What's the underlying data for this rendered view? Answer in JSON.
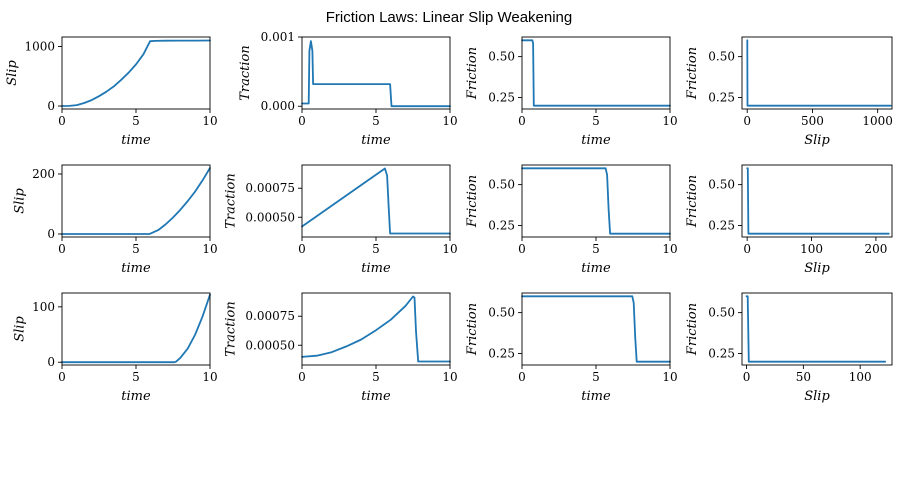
{
  "figure": {
    "title": "Friction Laws: Linear Slip Weakening",
    "line_color": "#1f77b4"
  },
  "chart_data": [
    {
      "type": "line",
      "xlabel": "time",
      "ylabel": "Slip",
      "xlim": [
        0,
        10
      ],
      "ylim": [
        -50,
        1160
      ],
      "xticks": [
        {
          "v": 0,
          "t": "0"
        },
        {
          "v": 5,
          "t": "5"
        },
        {
          "v": 10,
          "t": "10"
        }
      ],
      "yticks": [
        {
          "v": 0,
          "t": "0"
        },
        {
          "v": 1000,
          "t": "1000"
        }
      ],
      "x": [
        0,
        0.5,
        1,
        1.5,
        2,
        2.5,
        3,
        3.5,
        4,
        4.5,
        5,
        5.5,
        5.95,
        6.3,
        7,
        8,
        9,
        10
      ],
      "y": [
        0,
        2,
        15,
        50,
        100,
        165,
        240,
        330,
        440,
        560,
        700,
        870,
        1090,
        1095,
        1097,
        1099,
        1100,
        1102
      ]
    },
    {
      "type": "line",
      "xlabel": "time",
      "ylabel": "Traction",
      "xlim": [
        0,
        10
      ],
      "ylim": [
        -4e-05,
        0.001
      ],
      "xticks": [
        {
          "v": 0,
          "t": "0"
        },
        {
          "v": 5,
          "t": "5"
        },
        {
          "v": 10,
          "t": "10"
        }
      ],
      "yticks": [
        {
          "v": 0,
          "t": "0.000"
        },
        {
          "v": 0.001,
          "t": "0.001"
        }
      ],
      "x": [
        0,
        0.45,
        0.5,
        0.6,
        0.7,
        0.75,
        0.8,
        5.95,
        6.05,
        10
      ],
      "y": [
        4e-05,
        4e-05,
        0.0008,
        0.00094,
        0.0008,
        0.00032,
        0.00032,
        0.00032,
        0,
        0
      ]
    },
    {
      "type": "line",
      "xlabel": "time",
      "ylabel": "Friction",
      "xlim": [
        0,
        10
      ],
      "ylim": [
        0.18,
        0.62
      ],
      "xticks": [
        {
          "v": 0,
          "t": "0"
        },
        {
          "v": 5,
          "t": "5"
        },
        {
          "v": 10,
          "t": "10"
        }
      ],
      "yticks": [
        {
          "v": 0.25,
          "t": "0.25"
        },
        {
          "v": 0.5,
          "t": "0.50"
        }
      ],
      "x": [
        0,
        0.7,
        0.75,
        0.8,
        10
      ],
      "y": [
        0.6,
        0.6,
        0.58,
        0.2,
        0.2
      ]
    },
    {
      "type": "line",
      "xlabel": "Slip",
      "ylabel": "Friction",
      "xlim": [
        -40,
        1110
      ],
      "ylim": [
        0.18,
        0.62
      ],
      "xticks": [
        {
          "v": 0,
          "t": "0"
        },
        {
          "v": 500,
          "t": "500"
        },
        {
          "v": 1000,
          "t": "1000"
        }
      ],
      "yticks": [
        {
          "v": 0.25,
          "t": "0.25"
        },
        {
          "v": 0.5,
          "t": "0.50"
        }
      ],
      "x": [
        0,
        1,
        2,
        1100
      ],
      "y": [
        0.6,
        0.6,
        0.2,
        0.2
      ]
    },
    {
      "type": "line",
      "xlabel": "time",
      "ylabel": "Slip",
      "xlim": [
        0,
        10
      ],
      "ylim": [
        -10,
        230
      ],
      "xticks": [
        {
          "v": 0,
          "t": "0"
        },
        {
          "v": 5,
          "t": "5"
        },
        {
          "v": 10,
          "t": "10"
        }
      ],
      "yticks": [
        {
          "v": 0,
          "t": "0"
        },
        {
          "v": 200,
          "t": "200"
        }
      ],
      "x": [
        0,
        5.9,
        6,
        6.5,
        7,
        7.5,
        8,
        8.5,
        9,
        9.5,
        10
      ],
      "y": [
        0,
        0,
        2,
        13,
        32,
        55,
        81,
        110,
        142,
        179,
        220
      ]
    },
    {
      "type": "line",
      "xlabel": "time",
      "ylabel": "Traction",
      "xlim": [
        0,
        10
      ],
      "ylim": [
        0.00033,
        0.00095
      ],
      "xticks": [
        {
          "v": 0,
          "t": "0"
        },
        {
          "v": 5,
          "t": "5"
        },
        {
          "v": 10,
          "t": "10"
        }
      ],
      "yticks": [
        {
          "v": 0.0005,
          "t": "0.00050"
        },
        {
          "v": 0.00075,
          "t": "0.00075"
        }
      ],
      "x": [
        0,
        5.6,
        5.75,
        5.85,
        5.95,
        10
      ],
      "y": [
        0.00042,
        0.00092,
        0.00086,
        0.0006,
        0.00036,
        0.00036
      ]
    },
    {
      "type": "line",
      "xlabel": "time",
      "ylabel": "Friction",
      "xlim": [
        0,
        10
      ],
      "ylim": [
        0.18,
        0.62
      ],
      "xticks": [
        {
          "v": 0,
          "t": "0"
        },
        {
          "v": 5,
          "t": "5"
        },
        {
          "v": 10,
          "t": "10"
        }
      ],
      "yticks": [
        {
          "v": 0.25,
          "t": "0.25"
        },
        {
          "v": 0.5,
          "t": "0.50"
        }
      ],
      "x": [
        0,
        5.65,
        5.75,
        5.85,
        5.95,
        10
      ],
      "y": [
        0.6,
        0.6,
        0.56,
        0.35,
        0.2,
        0.2
      ]
    },
    {
      "type": "line",
      "xlabel": "Slip",
      "ylabel": "Friction",
      "xlim": [
        -8,
        225
      ],
      "ylim": [
        0.18,
        0.62
      ],
      "xticks": [
        {
          "v": 0,
          "t": "0"
        },
        {
          "v": 100,
          "t": "100"
        },
        {
          "v": 200,
          "t": "200"
        }
      ],
      "yticks": [
        {
          "v": 0.25,
          "t": "0.25"
        },
        {
          "v": 0.5,
          "t": "0.50"
        }
      ],
      "x": [
        0,
        1,
        2,
        220
      ],
      "y": [
        0.6,
        0.6,
        0.2,
        0.2
      ]
    },
    {
      "type": "line",
      "xlabel": "time",
      "ylabel": "Slip",
      "xlim": [
        0,
        10
      ],
      "ylim": [
        -5,
        125
      ],
      "xticks": [
        {
          "v": 0,
          "t": "0"
        },
        {
          "v": 5,
          "t": "5"
        },
        {
          "v": 10,
          "t": "10"
        }
      ],
      "yticks": [
        {
          "v": 0,
          "t": "0"
        },
        {
          "v": 100,
          "t": "100"
        }
      ],
      "x": [
        0,
        7.6,
        7.7,
        8,
        8.5,
        9,
        9.5,
        10
      ],
      "y": [
        0,
        0,
        1,
        8,
        25,
        50,
        83,
        122
      ]
    },
    {
      "type": "line",
      "xlabel": "time",
      "ylabel": "Traction",
      "xlim": [
        0,
        10
      ],
      "ylim": [
        0.00033,
        0.00095
      ],
      "xticks": [
        {
          "v": 0,
          "t": "0"
        },
        {
          "v": 5,
          "t": "5"
        },
        {
          "v": 10,
          "t": "10"
        }
      ],
      "yticks": [
        {
          "v": 0.0005,
          "t": "0.00050"
        },
        {
          "v": 0.00075,
          "t": "0.00075"
        }
      ],
      "x": [
        0,
        1,
        2,
        3,
        4,
        5,
        6,
        7,
        7.5,
        7.6,
        7.7,
        7.85,
        10
      ],
      "y": [
        0.0004,
        0.00041,
        0.00044,
        0.00049,
        0.00055,
        0.00063,
        0.00072,
        0.00084,
        0.00092,
        0.00091,
        0.00062,
        0.00036,
        0.00036
      ]
    },
    {
      "type": "line",
      "xlabel": "time",
      "ylabel": "Friction",
      "xlim": [
        0,
        10
      ],
      "ylim": [
        0.18,
        0.62
      ],
      "xticks": [
        {
          "v": 0,
          "t": "0"
        },
        {
          "v": 5,
          "t": "5"
        },
        {
          "v": 10,
          "t": "10"
        }
      ],
      "yticks": [
        {
          "v": 0.25,
          "t": "0.25"
        },
        {
          "v": 0.5,
          "t": "0.50"
        }
      ],
      "x": [
        0,
        7.45,
        7.55,
        7.65,
        7.75,
        10
      ],
      "y": [
        0.6,
        0.6,
        0.56,
        0.35,
        0.2,
        0.2
      ]
    },
    {
      "type": "line",
      "xlabel": "Slip",
      "ylabel": "Friction",
      "xlim": [
        -4,
        128
      ],
      "ylim": [
        0.18,
        0.62
      ],
      "xticks": [
        {
          "v": 0,
          "t": "0"
        },
        {
          "v": 50,
          "t": "50"
        },
        {
          "v": 100,
          "t": "100"
        }
      ],
      "yticks": [
        {
          "v": 0.25,
          "t": "0.25"
        },
        {
          "v": 0.5,
          "t": "0.50"
        }
      ],
      "x": [
        0,
        1,
        2,
        122
      ],
      "y": [
        0.6,
        0.6,
        0.2,
        0.2
      ]
    }
  ]
}
